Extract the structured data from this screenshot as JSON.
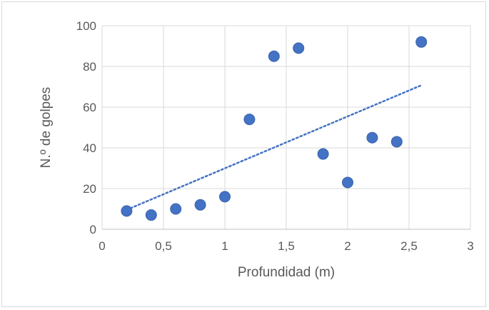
{
  "chart_data": {
    "type": "scatter",
    "title": "",
    "xlabel": "Profundidad (m)",
    "ylabel": "N.º de golpes",
    "xlim": [
      0,
      3
    ],
    "ylim": [
      0,
      100
    ],
    "x_ticks": [
      0,
      0.5,
      1,
      1.5,
      2,
      2.5,
      3
    ],
    "x_tick_labels": [
      "0",
      "0,5",
      "1",
      "1,5",
      "2",
      "2,5",
      "3"
    ],
    "y_ticks": [
      0,
      20,
      40,
      60,
      80,
      100
    ],
    "y_tick_labels": [
      "0",
      "20",
      "40",
      "60",
      "80",
      "100"
    ],
    "grid": true,
    "legend": "none",
    "series": [
      {
        "x": [
          0.2,
          0.4,
          0.6,
          0.8,
          1.0,
          1.2,
          1.4,
          1.6,
          1.8,
          2.0,
          2.2,
          2.4,
          2.6
        ],
        "y": [
          9,
          7,
          10,
          12,
          16,
          54,
          85,
          89,
          37,
          23,
          45,
          43,
          92
        ],
        "color": "#4472c4"
      }
    ],
    "trendline": {
      "type": "linear",
      "style": "dotted",
      "color": "#4472c4",
      "x_range": [
        0.2,
        2.6
      ]
    }
  }
}
